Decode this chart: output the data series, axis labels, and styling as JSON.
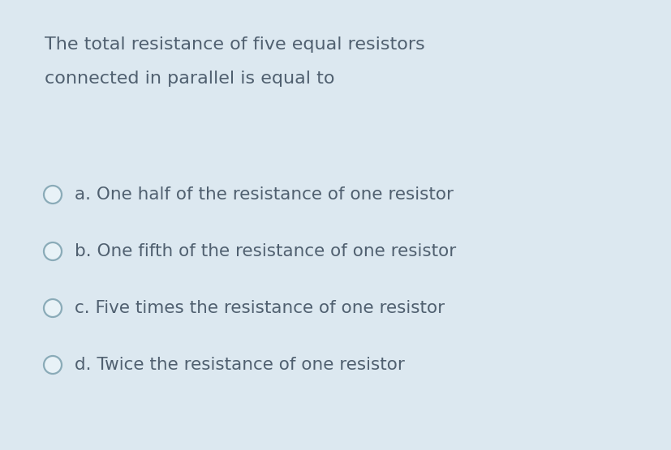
{
  "background_color": "#dce8f0",
  "question_line1": "The total resistance of five equal resistors",
  "question_line2": "connected in parallel is equal to",
  "options": [
    "a. One half of the resistance of one resistor",
    "b. One fifth of the resistance of one resistor",
    "c. Five times the resistance of one resistor",
    "d. Twice the resistance of one resistor"
  ],
  "text_color": "#506070",
  "circle_edge_color": "#8aabb8",
  "circle_inner_color": "#e8f2f7",
  "question_fontsize": 16,
  "option_fontsize": 15.5,
  "fig_width": 8.28,
  "fig_height": 5.55,
  "dpi": 100
}
